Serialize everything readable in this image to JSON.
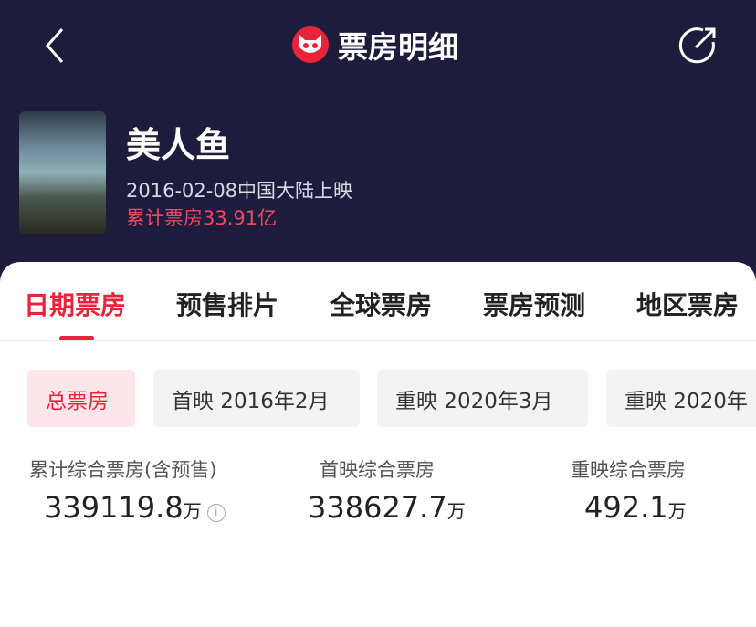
{
  "header": {
    "title": "票房明细",
    "back_icon": "chevron-left-icon",
    "share_icon": "share-icon",
    "logo": "maoyan-cat-logo",
    "accent": "#e8233b"
  },
  "movie": {
    "title": "美人鱼",
    "release": "2016-02-08中国大陆上映",
    "total_box_office": "累计票房33.91亿"
  },
  "tabs": [
    {
      "label": "日期票房",
      "active": true
    },
    {
      "label": "预售排片"
    },
    {
      "label": "全球票房"
    },
    {
      "label": "票房预测"
    },
    {
      "label": "地区票房"
    }
  ],
  "chips": [
    {
      "label": "总票房",
      "active": true
    },
    {
      "label": "首映 2016年2月"
    },
    {
      "label": "重映 2020年3月"
    },
    {
      "label": "重映 2020年"
    }
  ],
  "stats": [
    {
      "label": "累计综合票房(含预售)",
      "value": "339119.8",
      "unit": "万"
    },
    {
      "label": "首映综合票房",
      "value": "338627.7",
      "unit": "万"
    },
    {
      "label": "重映综合票房",
      "value": "492.1",
      "unit": "万"
    }
  ]
}
